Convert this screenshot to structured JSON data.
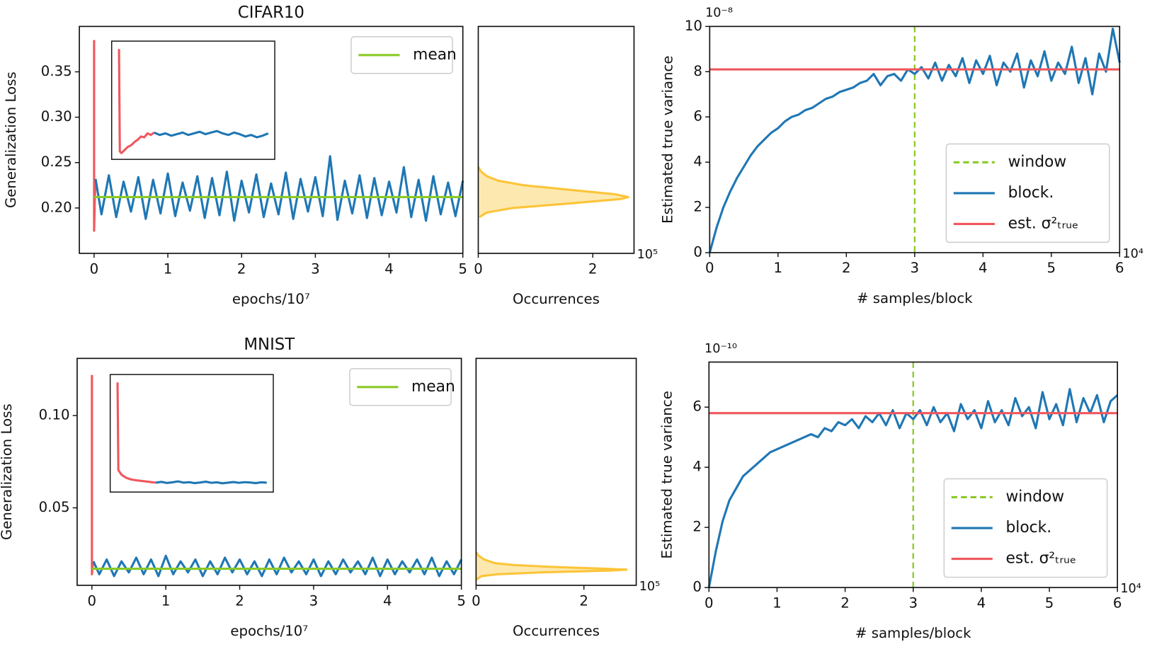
{
  "chart_data": [
    {
      "type": "line",
      "title": "CIFAR10",
      "xlabel": "epochs/10⁷",
      "ylabel": "Generalization Loss",
      "xlim": [
        -0.2,
        5
      ],
      "ylim": [
        0.15,
        0.4
      ],
      "xticks": [
        0,
        1,
        2,
        3,
        4,
        5
      ],
      "yticks": [
        {
          "value": 0.2,
          "label": "0.20"
        },
        {
          "value": 0.25,
          "label": "0.25"
        },
        {
          "value": 0.3,
          "label": "0.30"
        },
        {
          "value": 0.35,
          "label": "0.35"
        }
      ],
      "legend": "upper right",
      "series": [
        {
          "color": "#f0575d",
          "x": [
            0,
            0,
            0.01,
            0.02
          ],
          "values": [
            0.385,
            0.175,
            0.21,
            0.232
          ]
        },
        {
          "color": "#1f77b4",
          "x": [
            0.02,
            0.1,
            0.2,
            0.3,
            0.4,
            0.5,
            0.6,
            0.7,
            0.8,
            0.9,
            1.0,
            1.1,
            1.2,
            1.3,
            1.4,
            1.5,
            1.6,
            1.7,
            1.8,
            1.9,
            2.0,
            2.1,
            2.2,
            2.3,
            2.4,
            2.5,
            2.6,
            2.7,
            2.8,
            2.9,
            3.0,
            3.1,
            3.2,
            3.3,
            3.4,
            3.5,
            3.6,
            3.7,
            3.8,
            3.9,
            4.0,
            4.1,
            4.2,
            4.3,
            4.4,
            4.5,
            4.6,
            4.7,
            4.8,
            4.9,
            5.0
          ],
          "values": [
            0.232,
            0.193,
            0.236,
            0.19,
            0.229,
            0.196,
            0.234,
            0.188,
            0.231,
            0.194,
            0.238,
            0.191,
            0.228,
            0.197,
            0.235,
            0.189,
            0.233,
            0.192,
            0.24,
            0.186,
            0.23,
            0.195,
            0.237,
            0.19,
            0.227,
            0.193,
            0.239,
            0.188,
            0.232,
            0.196,
            0.234,
            0.191,
            0.257,
            0.187,
            0.23,
            0.194,
            0.236,
            0.189,
            0.233,
            0.192,
            0.229,
            0.195,
            0.245,
            0.19,
            0.231,
            0.186,
            0.235,
            0.193,
            0.228,
            0.191,
            0.23
          ]
        },
        {
          "name": "mean",
          "color": "#8ac926",
          "x": [
            0,
            5
          ],
          "values": [
            0.212,
            0.212
          ]
        }
      ],
      "inset": {
        "xlim": [
          0,
          1
        ],
        "ylim": [
          0.25,
          0.4
        ],
        "series": [
          {
            "color": "#f0575d",
            "x": [
              0.045,
              0.05,
              0.06,
              0.08,
              0.1,
              0.12,
              0.14,
              0.16,
              0.18,
              0.2,
              0.22,
              0.24,
              0.26
            ],
            "values": [
              0.39,
              0.26,
              0.258,
              0.262,
              0.266,
              0.268,
              0.272,
              0.275,
              0.279,
              0.278,
              0.283,
              0.281,
              0.284
            ]
          },
          {
            "color": "#1f77b4",
            "x": [
              0.26,
              0.295,
              0.33,
              0.365,
              0.4,
              0.435,
              0.47,
              0.505,
              0.54,
              0.575,
              0.61,
              0.645,
              0.68,
              0.715,
              0.75,
              0.785,
              0.82,
              0.855,
              0.89,
              0.925,
              0.96
            ],
            "values": [
              0.284,
              0.281,
              0.283,
              0.28,
              0.282,
              0.284,
              0.281,
              0.283,
              0.285,
              0.282,
              0.284,
              0.286,
              0.283,
              0.281,
              0.284,
              0.282,
              0.279,
              0.281,
              0.278,
              0.28,
              0.283
            ]
          }
        ]
      }
    },
    {
      "type": "density",
      "xlabel": "Occurrences",
      "x_offset_label": "10⁵",
      "xlim": [
        0,
        2.72
      ],
      "ylim": [
        0.15,
        0.4
      ],
      "xticks": [
        0,
        2
      ],
      "color": "#fcc438",
      "fill": "#fde9b0",
      "y": [
        0.245,
        0.24,
        0.235,
        0.23,
        0.225,
        0.22,
        0.215,
        0.212,
        0.21,
        0.205,
        0.2,
        0.195,
        0.19
      ],
      "values": [
        0,
        0.05,
        0.15,
        0.35,
        0.8,
        1.6,
        2.4,
        2.62,
        2.5,
        1.6,
        0.6,
        0.15,
        0.02
      ]
    },
    {
      "type": "line",
      "xlabel": "# samples/block",
      "ylabel": "Estimated true variance",
      "x_offset_label": "10⁴",
      "y_offset_label": "10⁻⁸",
      "xlim": [
        0,
        6
      ],
      "ylim": [
        0,
        10
      ],
      "xticks": [
        0,
        1,
        2,
        3,
        4,
        5,
        6
      ],
      "yticks": [
        0,
        2,
        4,
        6,
        8,
        10
      ],
      "legend": "lower right",
      "series": [
        {
          "name": "window",
          "color": "#8ac926",
          "dash": true,
          "xline": 3
        },
        {
          "name": "block.",
          "color": "#1f77b4",
          "x": [
            0,
            0.1,
            0.2,
            0.3,
            0.4,
            0.5,
            0.6,
            0.7,
            0.8,
            0.9,
            1.0,
            1.1,
            1.2,
            1.3,
            1.4,
            1.5,
            1.6,
            1.7,
            1.8,
            1.9,
            2.0,
            2.1,
            2.2,
            2.3,
            2.4,
            2.5,
            2.6,
            2.7,
            2.8,
            2.9,
            3.0,
            3.1,
            3.2,
            3.3,
            3.4,
            3.5,
            3.6,
            3.7,
            3.8,
            3.9,
            4.0,
            4.1,
            4.2,
            4.3,
            4.4,
            4.5,
            4.6,
            4.7,
            4.8,
            4.9,
            5.0,
            5.1,
            5.2,
            5.3,
            5.4,
            5.5,
            5.6,
            5.7,
            5.8,
            5.9,
            6.0
          ],
          "values": [
            0,
            1.1,
            2.0,
            2.7,
            3.3,
            3.8,
            4.3,
            4.7,
            5.0,
            5.3,
            5.5,
            5.8,
            6.0,
            6.1,
            6.3,
            6.4,
            6.6,
            6.8,
            6.9,
            7.1,
            7.2,
            7.3,
            7.5,
            7.6,
            7.9,
            7.4,
            7.8,
            7.9,
            7.6,
            8.1,
            7.9,
            8.2,
            7.7,
            8.4,
            7.6,
            8.3,
            7.8,
            8.6,
            7.5,
            8.5,
            7.9,
            8.7,
            7.4,
            8.4,
            8.0,
            8.8,
            7.3,
            8.5,
            7.8,
            8.9,
            7.6,
            8.4,
            7.9,
            9.1,
            7.5,
            8.6,
            7.0,
            8.8,
            8.0,
            9.9,
            8.4
          ]
        },
        {
          "name": "est. σ²ₜᵣᵤₑ",
          "color": "#f0575d",
          "x": [
            0,
            6
          ],
          "values": [
            8.1,
            8.1
          ]
        }
      ]
    },
    {
      "type": "line",
      "title": "MNIST",
      "xlabel": "epochs/10⁷",
      "ylabel": "Generalization Loss",
      "xlim": [
        -0.2,
        5
      ],
      "ylim": [
        0.008,
        0.131
      ],
      "xticks": [
        0,
        1,
        2,
        3,
        4,
        5
      ],
      "yticks": [
        {
          "value": 0.05,
          "label": "0.05"
        },
        {
          "value": 0.1,
          "label": "0.10"
        }
      ],
      "legend": "upper right",
      "series": [
        {
          "color": "#f0575d",
          "x": [
            0,
            0,
            0.01,
            0.02
          ],
          "values": [
            0.122,
            0.014,
            0.018,
            0.021
          ]
        },
        {
          "color": "#1f77b4",
          "x": [
            0.02,
            0.1,
            0.2,
            0.3,
            0.4,
            0.5,
            0.6,
            0.7,
            0.8,
            0.9,
            1.0,
            1.1,
            1.2,
            1.3,
            1.4,
            1.5,
            1.6,
            1.7,
            1.8,
            1.9,
            2.0,
            2.1,
            2.2,
            2.3,
            2.4,
            2.5,
            2.6,
            2.7,
            2.8,
            2.9,
            3.0,
            3.1,
            3.2,
            3.3,
            3.4,
            3.5,
            3.6,
            3.7,
            3.8,
            3.9,
            4.0,
            4.1,
            4.2,
            4.3,
            4.4,
            4.5,
            4.6,
            4.7,
            4.8,
            4.9,
            5.0
          ],
          "values": [
            0.021,
            0.014,
            0.022,
            0.013,
            0.021,
            0.015,
            0.023,
            0.014,
            0.022,
            0.013,
            0.024,
            0.014,
            0.021,
            0.015,
            0.022,
            0.013,
            0.021,
            0.014,
            0.023,
            0.015,
            0.022,
            0.014,
            0.021,
            0.013,
            0.022,
            0.014,
            0.023,
            0.015,
            0.021,
            0.014,
            0.022,
            0.013,
            0.021,
            0.014,
            0.022,
            0.015,
            0.021,
            0.014,
            0.023,
            0.013,
            0.022,
            0.014,
            0.021,
            0.015,
            0.022,
            0.014,
            0.023,
            0.013,
            0.021,
            0.014,
            0.022
          ]
        },
        {
          "name": "mean",
          "color": "#8ac926",
          "x": [
            0,
            5
          ],
          "values": [
            0.017,
            0.017
          ]
        }
      ],
      "inset": {
        "xlim": [
          0,
          1
        ],
        "ylim": [
          0.055,
          0.13
        ],
        "series": [
          {
            "color": "#f0575d",
            "x": [
              0.045,
              0.05,
              0.07,
              0.1,
              0.13,
              0.16,
              0.2,
              0.24,
              0.28
            ],
            "values": [
              0.125,
              0.069,
              0.066,
              0.064,
              0.063,
              0.0625,
              0.062,
              0.0615,
              0.061
            ]
          },
          {
            "color": "#1f77b4",
            "x": [
              0.28,
              0.314,
              0.348,
              0.382,
              0.416,
              0.45,
              0.484,
              0.518,
              0.552,
              0.586,
              0.62,
              0.654,
              0.688,
              0.722,
              0.756,
              0.79,
              0.824,
              0.858,
              0.892,
              0.926,
              0.96
            ],
            "values": [
              0.061,
              0.0615,
              0.0608,
              0.0612,
              0.0618,
              0.061,
              0.0613,
              0.0607,
              0.0611,
              0.0616,
              0.0609,
              0.0612,
              0.0606,
              0.061,
              0.0614,
              0.0609,
              0.0613,
              0.0611,
              0.0607,
              0.0612,
              0.061
            ]
          }
        ]
      }
    },
    {
      "type": "density",
      "xlabel": "Occurrences",
      "x_offset_label": "10⁵",
      "xlim": [
        0,
        2.97
      ],
      "ylim": [
        0.008,
        0.131
      ],
      "xticks": [
        0,
        2
      ],
      "color": "#fcc438",
      "fill": "#fde9b0",
      "y": [
        0.026,
        0.024,
        0.022,
        0.02,
        0.019,
        0.018,
        0.017,
        0.0165,
        0.016,
        0.015,
        0.014,
        0.013,
        0.011
      ],
      "values": [
        0,
        0.05,
        0.15,
        0.35,
        0.7,
        1.4,
        2.4,
        2.79,
        2.5,
        1.2,
        0.4,
        0.1,
        0
      ]
    },
    {
      "type": "line",
      "xlabel": "# samples/block",
      "ylabel": "Estimated true variance",
      "x_offset_label": "10⁴",
      "y_offset_label": "10⁻¹⁰",
      "xlim": [
        0,
        6
      ],
      "ylim": [
        0,
        7.5
      ],
      "xticks": [
        0,
        1,
        2,
        3,
        4,
        5,
        6
      ],
      "yticks": [
        0,
        2,
        4,
        6
      ],
      "legend": "lower right",
      "series": [
        {
          "name": "window",
          "color": "#8ac926",
          "dash": true,
          "xline": 3
        },
        {
          "name": "block.",
          "color": "#1f77b4",
          "x": [
            0,
            0.1,
            0.2,
            0.3,
            0.4,
            0.5,
            0.6,
            0.7,
            0.8,
            0.9,
            1.0,
            1.1,
            1.2,
            1.3,
            1.4,
            1.5,
            1.6,
            1.7,
            1.8,
            1.9,
            2.0,
            2.1,
            2.2,
            2.3,
            2.4,
            2.5,
            2.6,
            2.7,
            2.8,
            2.9,
            3.0,
            3.1,
            3.2,
            3.3,
            3.4,
            3.5,
            3.6,
            3.7,
            3.8,
            3.9,
            4.0,
            4.1,
            4.2,
            4.3,
            4.4,
            4.5,
            4.6,
            4.7,
            4.8,
            4.9,
            5.0,
            5.1,
            5.2,
            5.3,
            5.4,
            5.5,
            5.6,
            5.7,
            5.8,
            5.9,
            6.0
          ],
          "values": [
            0,
            1.2,
            2.2,
            2.9,
            3.3,
            3.7,
            3.9,
            4.1,
            4.3,
            4.5,
            4.6,
            4.7,
            4.8,
            4.9,
            5.0,
            5.1,
            5.0,
            5.3,
            5.2,
            5.5,
            5.4,
            5.6,
            5.3,
            5.7,
            5.5,
            5.8,
            5.4,
            5.9,
            5.3,
            5.8,
            5.6,
            5.9,
            5.4,
            6.0,
            5.5,
            5.8,
            5.2,
            6.1,
            5.6,
            5.9,
            5.3,
            6.2,
            5.5,
            5.9,
            5.4,
            6.3,
            5.7,
            6.0,
            5.3,
            6.5,
            5.6,
            6.1,
            5.4,
            6.6,
            5.5,
            6.3,
            5.8,
            6.4,
            5.5,
            6.2,
            6.4
          ]
        },
        {
          "name": "est. σ²ₜᵣᵤₑ",
          "color": "#f0575d",
          "x": [
            0,
            6
          ],
          "values": [
            5.8,
            5.8
          ]
        }
      ]
    }
  ]
}
